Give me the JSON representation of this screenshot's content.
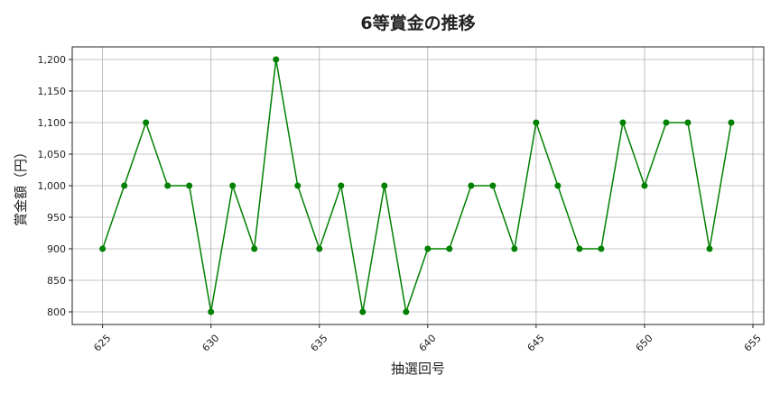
{
  "chart_data": {
    "type": "line",
    "title": "6等賞金の推移",
    "xlabel": "抽選回号",
    "ylabel": "賞金額（円）",
    "x": [
      625,
      626,
      627,
      628,
      629,
      630,
      631,
      632,
      633,
      634,
      635,
      636,
      637,
      638,
      639,
      640,
      641,
      642,
      643,
      644,
      645,
      646,
      647,
      648,
      649,
      650,
      651,
      652,
      653,
      654
    ],
    "series": [
      {
        "values": [
          900,
          1000,
          1100,
          1000,
          1000,
          800,
          1000,
          900,
          1200,
          1000,
          900,
          1000,
          800,
          1000,
          800,
          900,
          900,
          1000,
          1000,
          900,
          1100,
          1000,
          900,
          900,
          1100,
          1000,
          1100,
          1100,
          900,
          1100
        ],
        "color": "#008000",
        "marker": "circle"
      }
    ],
    "xlim": [
      623.6,
      655.5
    ],
    "ylim": [
      780,
      1220
    ],
    "xticks": [
      625,
      630,
      635,
      640,
      645,
      650,
      655
    ],
    "yticks": [
      800,
      850,
      900,
      950,
      1000,
      1050,
      1100,
      1150,
      1200
    ],
    "ytick_labels": [
      "800",
      "850",
      "900",
      "950",
      "1,000",
      "1,050",
      "1,100",
      "1,150",
      "1,200"
    ],
    "grid": true
  }
}
